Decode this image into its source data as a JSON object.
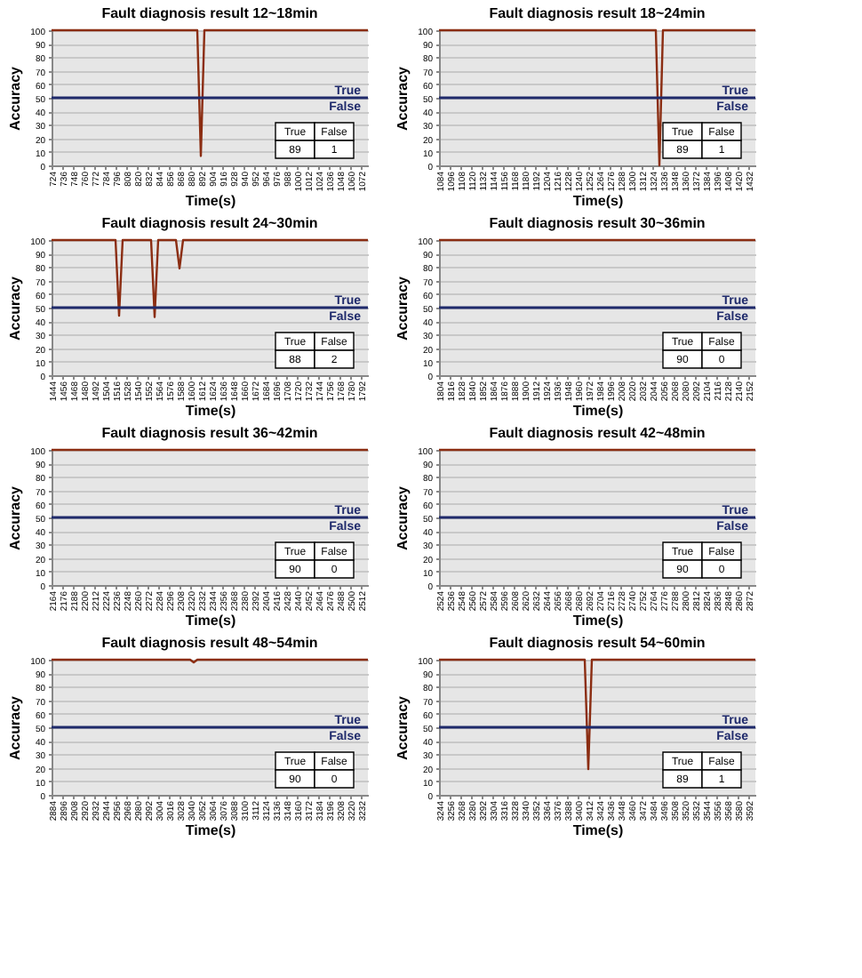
{
  "chart_data": [
    {
      "type": "line",
      "title": "Fault diagnosis result 12~18min",
      "xlabel": "Time(s)",
      "ylabel": "Accuracy",
      "xlim": [
        724,
        1080
      ],
      "ylim": [
        0,
        100
      ],
      "yticks": [
        0,
        10,
        20,
        30,
        40,
        50,
        60,
        70,
        80,
        90,
        100
      ],
      "grid": "y",
      "xticks": [
        724,
        736,
        748,
        760,
        772,
        784,
        796,
        808,
        820,
        832,
        844,
        856,
        868,
        880,
        892,
        904,
        916,
        928,
        940,
        952,
        964,
        976,
        988,
        1000,
        1012,
        1024,
        1036,
        1048,
        1060,
        1072
      ],
      "series": [
        {
          "color": "#8b2d12",
          "x": [
            724,
            888,
            892,
            896,
            1080
          ],
          "values": [
            100,
            100,
            7,
            100,
            100
          ]
        }
      ],
      "ref_lines": [
        {
          "axis": "y",
          "value": 50,
          "label": "True",
          "color": "#1f2a6b"
        }
      ],
      "annotations": [
        "False",
        "True",
        "False",
        "89",
        "1"
      ]
    },
    {
      "type": "line",
      "title": "Fault diagnosis result 18~24min",
      "xlabel": "Time(s)",
      "ylabel": "Accuracy",
      "xlim": [
        1084,
        1440
      ],
      "ylim": [
        0,
        100
      ],
      "yticks": [
        0,
        10,
        20,
        30,
        40,
        50,
        60,
        70,
        80,
        90,
        100
      ],
      "grid": "y",
      "xticks": [
        1084,
        1096,
        1108,
        1120,
        1132,
        1144,
        1156,
        1168,
        1180,
        1192,
        1204,
        1216,
        1228,
        1240,
        1252,
        1264,
        1276,
        1288,
        1300,
        1312,
        1324,
        1336,
        1348,
        1360,
        1372,
        1384,
        1396,
        1408,
        1420,
        1432
      ],
      "series": [
        {
          "color": "#8b2d12",
          "x": [
            1084,
            1328,
            1332,
            1336,
            1440
          ],
          "values": [
            100,
            100,
            0,
            100,
            100
          ]
        }
      ],
      "ref_lines": [
        {
          "axis": "y",
          "value": 50,
          "label": "True",
          "color": "#1f2a6b"
        }
      ],
      "annotations": [
        "False",
        "True",
        "False",
        "89",
        "1"
      ]
    },
    {
      "type": "line",
      "title": "Fault diagnosis result 24~30min",
      "xlabel": "Time(s)",
      "ylabel": "Accuracy",
      "xlim": [
        1444,
        1800
      ],
      "ylim": [
        0,
        100
      ],
      "yticks": [
        0,
        10,
        20,
        30,
        40,
        50,
        60,
        70,
        80,
        90,
        100
      ],
      "grid": "y",
      "xticks": [
        1444,
        1456,
        1468,
        1480,
        1492,
        1504,
        1516,
        1528,
        1540,
        1552,
        1564,
        1576,
        1588,
        1600,
        1612,
        1624,
        1636,
        1648,
        1660,
        1672,
        1684,
        1696,
        1708,
        1720,
        1732,
        1744,
        1756,
        1768,
        1780,
        1792
      ],
      "series": [
        {
          "color": "#8b2d12",
          "x": [
            1444,
            1516,
            1520,
            1524,
            1556,
            1560,
            1564,
            1584,
            1588,
            1592,
            1800
          ],
          "values": [
            100,
            100,
            44,
            100,
            100,
            43,
            100,
            100,
            79,
            100,
            100
          ]
        }
      ],
      "ref_lines": [
        {
          "axis": "y",
          "value": 50,
          "label": "True",
          "color": "#1f2a6b"
        }
      ],
      "annotations": [
        "False",
        "True",
        "False",
        "88",
        "2"
      ]
    },
    {
      "type": "line",
      "title": "Fault diagnosis result 30~36min",
      "xlabel": "Time(s)",
      "ylabel": "Accuracy",
      "xlim": [
        1804,
        2160
      ],
      "ylim": [
        0,
        100
      ],
      "yticks": [
        0,
        10,
        20,
        30,
        40,
        50,
        60,
        70,
        80,
        90,
        100
      ],
      "grid": "y",
      "xticks": [
        1804,
        1816,
        1828,
        1840,
        1852,
        1864,
        1876,
        1888,
        1900,
        1912,
        1924,
        1936,
        1948,
        1960,
        1972,
        1984,
        1996,
        2008,
        2020,
        2032,
        2044,
        2056,
        2068,
        2080,
        2092,
        2104,
        2116,
        2128,
        2140,
        2152
      ],
      "series": [
        {
          "color": "#8b2d12",
          "x": [
            1804,
            2160
          ],
          "values": [
            100,
            100
          ]
        }
      ],
      "ref_lines": [
        {
          "axis": "y",
          "value": 50,
          "label": "True",
          "color": "#1f2a6b"
        }
      ],
      "annotations": [
        "False",
        "True",
        "False",
        "90",
        "0"
      ]
    },
    {
      "type": "line",
      "title": "Fault diagnosis result 36~42min",
      "xlabel": "Time(s)",
      "ylabel": "Accuracy",
      "xlim": [
        2164,
        2520
      ],
      "ylim": [
        0,
        100
      ],
      "yticks": [
        0,
        10,
        20,
        30,
        40,
        50,
        60,
        70,
        80,
        90,
        100
      ],
      "grid": "y",
      "xticks": [
        2164,
        2176,
        2188,
        2200,
        2212,
        2224,
        2236,
        2248,
        2260,
        2272,
        2284,
        2296,
        2308,
        2320,
        2332,
        2344,
        2356,
        2368,
        2380,
        2392,
        2404,
        2416,
        2428,
        2440,
        2452,
        2464,
        2476,
        2488,
        2500,
        2512
      ],
      "series": [
        {
          "color": "#8b2d12",
          "x": [
            2164,
            2520
          ],
          "values": [
            100,
            100
          ]
        }
      ],
      "ref_lines": [
        {
          "axis": "y",
          "value": 50,
          "label": "True",
          "color": "#1f2a6b"
        }
      ],
      "annotations": [
        "False",
        "True",
        "False",
        "90",
        "0"
      ]
    },
    {
      "type": "line",
      "title": "Fault diagnosis result 42~48min",
      "xlabel": "Time(s)",
      "ylabel": "Accuracy",
      "xlim": [
        2524,
        2880
      ],
      "ylim": [
        0,
        100
      ],
      "yticks": [
        0,
        10,
        20,
        30,
        40,
        50,
        60,
        70,
        80,
        90,
        100
      ],
      "grid": "y",
      "xticks": [
        2524,
        2536,
        2548,
        2560,
        2572,
        2584,
        2596,
        2608,
        2620,
        2632,
        2644,
        2656,
        2668,
        2680,
        2692,
        2704,
        2716,
        2728,
        2740,
        2752,
        2764,
        2776,
        2788,
        2800,
        2812,
        2824,
        2836,
        2848,
        2860,
        2872
      ],
      "series": [
        {
          "color": "#8b2d12",
          "x": [
            2524,
            2880
          ],
          "values": [
            100,
            100
          ]
        }
      ],
      "ref_lines": [
        {
          "axis": "y",
          "value": 50,
          "label": "True",
          "color": "#1f2a6b"
        }
      ],
      "annotations": [
        "False",
        "True",
        "False",
        "90",
        "0"
      ]
    },
    {
      "type": "line",
      "title": "Fault diagnosis result 48~54min",
      "xlabel": "Time(s)",
      "ylabel": "Accuracy",
      "xlim": [
        2884,
        3240
      ],
      "ylim": [
        0,
        100
      ],
      "yticks": [
        0,
        10,
        20,
        30,
        40,
        50,
        60,
        70,
        80,
        90,
        100
      ],
      "grid": "y",
      "xticks": [
        2884,
        2896,
        2908,
        2920,
        2932,
        2944,
        2956,
        2968,
        2980,
        2992,
        3004,
        3016,
        3028,
        3040,
        3052,
        3064,
        3076,
        3088,
        3100,
        3112,
        3124,
        3136,
        3148,
        3160,
        3172,
        3184,
        3196,
        3208,
        3220,
        3232
      ],
      "series": [
        {
          "color": "#8b2d12",
          "x": [
            2884,
            3040,
            3044,
            3048,
            3240
          ],
          "values": [
            100,
            100,
            98,
            100,
            100
          ]
        }
      ],
      "ref_lines": [
        {
          "axis": "y",
          "value": 50,
          "label": "True",
          "color": "#1f2a6b"
        }
      ],
      "annotations": [
        "False",
        "True",
        "False",
        "90",
        "0"
      ]
    },
    {
      "type": "line",
      "title": "Fault diagnosis result 54~60min",
      "xlabel": "Time(s)",
      "ylabel": "Accuracy",
      "xlim": [
        3244,
        3600
      ],
      "ylim": [
        0,
        100
      ],
      "yticks": [
        0,
        10,
        20,
        30,
        40,
        50,
        60,
        70,
        80,
        90,
        100
      ],
      "grid": "y",
      "xticks": [
        3244,
        3256,
        3268,
        3280,
        3292,
        3304,
        3316,
        3328,
        3340,
        3352,
        3364,
        3376,
        3388,
        3400,
        3412,
        3424,
        3436,
        3448,
        3460,
        3472,
        3484,
        3496,
        3508,
        3520,
        3532,
        3544,
        3556,
        3568,
        3580,
        3592
      ],
      "series": [
        {
          "color": "#8b2d12",
          "x": [
            3244,
            3408,
            3412,
            3416,
            3600
          ],
          "values": [
            100,
            100,
            19,
            100,
            100
          ]
        }
      ],
      "ref_lines": [
        {
          "axis": "y",
          "value": 50,
          "label": "True",
          "color": "#1f2a6b"
        }
      ],
      "annotations": [
        "False",
        "True",
        "False",
        "89",
        "1"
      ]
    }
  ]
}
